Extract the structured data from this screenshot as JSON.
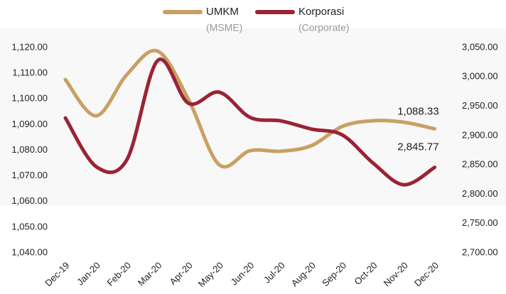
{
  "chart_data": {
    "type": "line",
    "categories": [
      "Dec-19",
      "Jan-20",
      "Feb-20",
      "Mar-20",
      "Apr-20",
      "May-20",
      "Jun-20",
      "Jul-20",
      "Aug-20",
      "Sep-20",
      "Oct-20",
      "Nov-20",
      "Dec-20"
    ],
    "series": [
      {
        "name": "UMKM",
        "subtitle": "(MSME)",
        "color": "#c9a063",
        "values": [
          1107.5,
          1093.4,
          1109.5,
          1118.6,
          1099.8,
          1074.3,
          1079.8,
          1079.6,
          1081.8,
          1089.3,
          1091.5,
          1090.9,
          1088.33
        ],
        "value_labels": [
          null,
          null,
          null,
          null,
          null,
          null,
          null,
          null,
          null,
          null,
          null,
          null,
          "1,088.33"
        ]
      },
      {
        "name": "Korporasi",
        "subtitle": "(Corporate)",
        "color": "#9b2335",
        "axis": "y2",
        "values": [
          2930,
          2847,
          2859,
          3028,
          2955,
          2974,
          2931,
          2925,
          2911,
          2901,
          2853,
          2816,
          2845.77
        ],
        "value_labels": [
          null,
          null,
          null,
          null,
          null,
          null,
          null,
          null,
          null,
          null,
          null,
          null,
          "2,845.77"
        ]
      }
    ],
    "ylim": [
      1040,
      1120
    ],
    "yticks": [
      {
        "value": 1040,
        "label": "1,040.00"
      },
      {
        "value": 1050,
        "label": "1,050.00"
      },
      {
        "value": 1060,
        "label": "1,060.00"
      },
      {
        "value": 1070,
        "label": "1,070.00"
      },
      {
        "value": 1080,
        "label": "1,080.00"
      },
      {
        "value": 1090,
        "label": "1,090.00"
      },
      {
        "value": 1100,
        "label": "1,100.00"
      },
      {
        "value": 1110,
        "label": "1,110.00"
      },
      {
        "value": 1120,
        "label": "1,120.00"
      }
    ],
    "y2lim": [
      2700,
      3050
    ],
    "y2ticks": [
      {
        "value": 2700,
        "label": "2,700.00"
      },
      {
        "value": 2750,
        "label": "2,750.00"
      },
      {
        "value": 2800,
        "label": "2,800.00"
      },
      {
        "value": 2850,
        "label": "2,850.00"
      },
      {
        "value": 2900,
        "label": "2,900.00"
      },
      {
        "value": 2950,
        "label": "2,950.00"
      },
      {
        "value": 3000,
        "label": "3,000.00"
      },
      {
        "value": 3050,
        "label": "3,050.00"
      }
    ],
    "grid": false
  }
}
